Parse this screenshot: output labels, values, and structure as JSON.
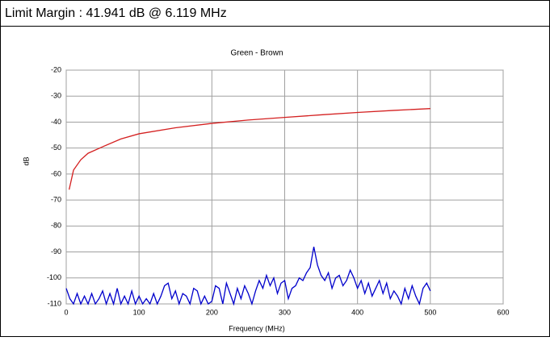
{
  "header": {
    "title": "Limit Margin : 41.941 dB @ 6.119 MHz"
  },
  "chart_data": {
    "type": "line",
    "title": "Green - Brown",
    "x_label": "Frequency (MHz)",
    "y_label": "dB",
    "xlim": [
      0,
      600
    ],
    "xticks": [
      0,
      100,
      200,
      300,
      400,
      500,
      600
    ],
    "ylim": [
      -110,
      -20
    ],
    "yticks": [
      -20,
      -30,
      -40,
      -50,
      -60,
      -70,
      -80,
      -90,
      -100,
      -110
    ],
    "grid": true,
    "series": [
      {
        "color": "#d42020",
        "x": [
          4,
          10,
          20,
          30,
          50,
          75,
          100,
          150,
          200,
          250,
          300,
          350,
          400,
          450,
          500
        ],
        "values": [
          -66,
          -58.5,
          -54.5,
          -52,
          -49.5,
          -46.5,
          -44.5,
          -42.2,
          -40.5,
          -39.2,
          -38.2,
          -37.2,
          -36.3,
          -35.5,
          -34.8
        ]
      },
      {
        "color": "#0000cc",
        "x": [
          0,
          5,
          10,
          15,
          20,
          25,
          30,
          35,
          40,
          45,
          50,
          55,
          60,
          65,
          70,
          75,
          80,
          85,
          90,
          95,
          100,
          105,
          110,
          115,
          120,
          125,
          130,
          135,
          140,
          145,
          150,
          155,
          160,
          165,
          170,
          175,
          180,
          185,
          190,
          195,
          200,
          205,
          210,
          215,
          220,
          225,
          230,
          235,
          240,
          245,
          250,
          255,
          260,
          265,
          270,
          275,
          280,
          285,
          290,
          295,
          300,
          305,
          310,
          315,
          320,
          325,
          330,
          335,
          340,
          345,
          350,
          355,
          360,
          365,
          370,
          375,
          380,
          385,
          390,
          395,
          400,
          405,
          410,
          415,
          420,
          425,
          430,
          435,
          440,
          445,
          450,
          455,
          460,
          465,
          470,
          475,
          480,
          485,
          490,
          495,
          500
        ],
        "values": [
          -104,
          -108,
          -110,
          -106,
          -110,
          -107,
          -110,
          -106,
          -110,
          -108,
          -105,
          -110,
          -106,
          -110,
          -104,
          -110,
          -107,
          -110,
          -105,
          -110,
          -107,
          -110,
          -108,
          -110,
          -106,
          -110,
          -107,
          -103,
          -102,
          -108,
          -105,
          -110,
          -106,
          -107,
          -110,
          -104,
          -105,
          -110,
          -107,
          -110,
          -109,
          -103,
          -104,
          -110,
          -102,
          -106,
          -110,
          -104,
          -108,
          -103,
          -106,
          -110,
          -105,
          -101,
          -104,
          -99,
          -103,
          -100,
          -106,
          -102,
          -101,
          -108,
          -104,
          -103,
          -100,
          -101,
          -98,
          -96,
          -88,
          -95,
          -99,
          -101,
          -98,
          -104,
          -100,
          -99,
          -103,
          -101,
          -97,
          -100,
          -104,
          -101,
          -106,
          -102,
          -107,
          -104,
          -101,
          -106,
          -102,
          -108,
          -105,
          -107,
          -110,
          -104,
          -108,
          -103,
          -107,
          -110,
          -104,
          -102,
          -105
        ]
      }
    ]
  }
}
